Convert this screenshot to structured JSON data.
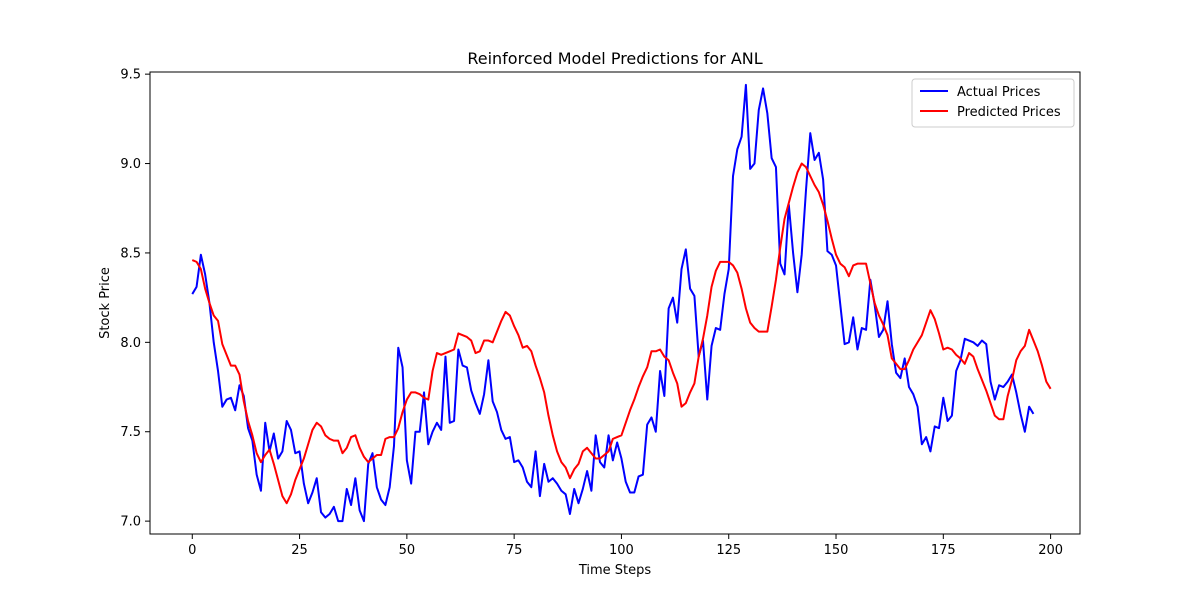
{
  "chart_data": {
    "type": "line",
    "title": "Reinforced Model Predictions for ANL",
    "xlabel": "Time Steps",
    "ylabel": "Stock Price",
    "xlim": [
      -9.85,
      206.85
    ],
    "ylim": [
      6.928,
      9.512
    ],
    "xticks": [
      0,
      25,
      50,
      75,
      100,
      125,
      150,
      175,
      200
    ],
    "yticks": [
      7.0,
      7.5,
      8.0,
      8.5,
      9.0,
      9.5
    ],
    "xtick_labels": [
      "0",
      "25",
      "50",
      "75",
      "100",
      "125",
      "150",
      "175",
      "200"
    ],
    "ytick_labels": [
      "7.0",
      "7.5",
      "8.0",
      "8.5",
      "9.0",
      "9.5"
    ],
    "grid": false,
    "legend_position": "top-right",
    "series": [
      {
        "name": "Actual Prices",
        "color": "#0000ff",
        "values": [
          8.27,
          8.31,
          8.49,
          8.38,
          8.22,
          8.0,
          7.84,
          7.64,
          7.68,
          7.69,
          7.62,
          7.76,
          7.7,
          7.52,
          7.45,
          7.26,
          7.17,
          7.55,
          7.39,
          7.49,
          7.35,
          7.39,
          7.56,
          7.51,
          7.38,
          7.39,
          7.21,
          7.1,
          7.16,
          7.24,
          7.05,
          7.02,
          7.04,
          7.08,
          7.0,
          7.0,
          7.18,
          7.09,
          7.24,
          7.06,
          7.0,
          7.32,
          7.38,
          7.19,
          7.12,
          7.09,
          7.19,
          7.42,
          7.97,
          7.86,
          7.34,
          7.21,
          7.5,
          7.5,
          7.72,
          7.43,
          7.5,
          7.55,
          7.51,
          7.92,
          7.55,
          7.56,
          7.96,
          7.87,
          7.86,
          7.73,
          7.66,
          7.6,
          7.71,
          7.9,
          7.67,
          7.61,
          7.51,
          7.46,
          7.47,
          7.33,
          7.34,
          7.3,
          7.22,
          7.19,
          7.39,
          7.14,
          7.32,
          7.22,
          7.24,
          7.21,
          7.17,
          7.15,
          7.04,
          7.18,
          7.1,
          7.18,
          7.28,
          7.17,
          7.48,
          7.33,
          7.3,
          7.48,
          7.34,
          7.44,
          7.35,
          7.22,
          7.16,
          7.16,
          7.25,
          7.26,
          7.54,
          7.58,
          7.5,
          7.84,
          7.7,
          8.19,
          8.25,
          8.11,
          8.41,
          8.52,
          8.3,
          8.26,
          7.92,
          8.01,
          7.68,
          7.98,
          8.08,
          8.07,
          8.27,
          8.41,
          8.93,
          9.08,
          9.15,
          9.44,
          8.97,
          9.0,
          9.3,
          9.42,
          9.28,
          9.03,
          8.98,
          8.44,
          8.38,
          8.77,
          8.5,
          8.28,
          8.49,
          8.85,
          9.17,
          9.02,
          9.06,
          8.91,
          8.51,
          8.49,
          8.43,
          8.21,
          7.99,
          8.0,
          8.14,
          7.96,
          8.08,
          8.07,
          8.35,
          8.21,
          8.03,
          8.07,
          8.23,
          7.99,
          7.83,
          7.8,
          7.91,
          7.75,
          7.71,
          7.64,
          7.43,
          7.47,
          7.39,
          7.53,
          7.52,
          7.69,
          7.56,
          7.59,
          7.84,
          7.9,
          8.02,
          8.01,
          8.0,
          7.98,
          8.01,
          7.99,
          7.78,
          7.68,
          7.76,
          7.75,
          7.78,
          7.82,
          7.72,
          7.6,
          7.5,
          7.64,
          7.6
        ]
      },
      {
        "name": "Predicted Prices",
        "color": "#ff0000",
        "values": [
          8.46,
          8.45,
          8.41,
          8.3,
          8.22,
          8.15,
          8.12,
          7.99,
          7.93,
          7.87,
          7.87,
          7.82,
          7.67,
          7.56,
          7.48,
          7.38,
          7.33,
          7.37,
          7.4,
          7.32,
          7.23,
          7.14,
          7.1,
          7.15,
          7.23,
          7.29,
          7.35,
          7.43,
          7.51,
          7.55,
          7.53,
          7.48,
          7.46,
          7.45,
          7.45,
          7.38,
          7.41,
          7.47,
          7.48,
          7.41,
          7.36,
          7.33,
          7.35,
          7.37,
          7.37,
          7.46,
          7.47,
          7.47,
          7.52,
          7.61,
          7.68,
          7.72,
          7.72,
          7.71,
          7.69,
          7.68,
          7.84,
          7.94,
          7.93,
          7.94,
          7.95,
          7.96,
          8.05,
          8.04,
          8.03,
          8.01,
          7.94,
          7.95,
          8.01,
          8.01,
          8.0,
          8.06,
          8.12,
          8.17,
          8.15,
          8.09,
          8.04,
          7.97,
          7.98,
          7.95,
          7.87,
          7.8,
          7.72,
          7.59,
          7.48,
          7.39,
          7.33,
          7.3,
          7.24,
          7.29,
          7.32,
          7.39,
          7.41,
          7.38,
          7.35,
          7.35,
          7.37,
          7.39,
          7.46,
          7.47,
          7.48,
          7.55,
          7.62,
          7.68,
          7.75,
          7.81,
          7.86,
          7.95,
          7.95,
          7.96,
          7.92,
          7.9,
          7.83,
          7.77,
          7.64,
          7.66,
          7.72,
          7.77,
          7.92,
          8.02,
          8.15,
          8.31,
          8.4,
          8.45,
          8.45,
          8.45,
          8.43,
          8.39,
          8.3,
          8.19,
          8.11,
          8.08,
          8.06,
          8.06,
          8.06,
          8.2,
          8.35,
          8.53,
          8.69,
          8.78,
          8.87,
          8.95,
          9.0,
          8.98,
          8.93,
          8.88,
          8.84,
          8.77,
          8.68,
          8.58,
          8.49,
          8.44,
          8.42,
          8.37,
          8.43,
          8.44,
          8.44,
          8.44,
          8.33,
          8.22,
          8.15,
          8.1,
          8.04,
          7.91,
          7.88,
          7.85,
          7.85,
          7.9,
          7.96,
          8.0,
          8.04,
          8.11,
          8.18,
          8.13,
          8.05,
          7.96,
          7.97,
          7.96,
          7.93,
          7.91,
          7.88,
          7.94,
          7.92,
          7.85,
          7.79,
          7.73,
          7.66,
          7.59,
          7.57,
          7.57,
          7.7,
          7.79,
          7.9,
          7.95,
          7.98,
          8.07,
          8.01,
          7.95,
          7.87,
          7.78,
          7.74
        ]
      }
    ]
  }
}
